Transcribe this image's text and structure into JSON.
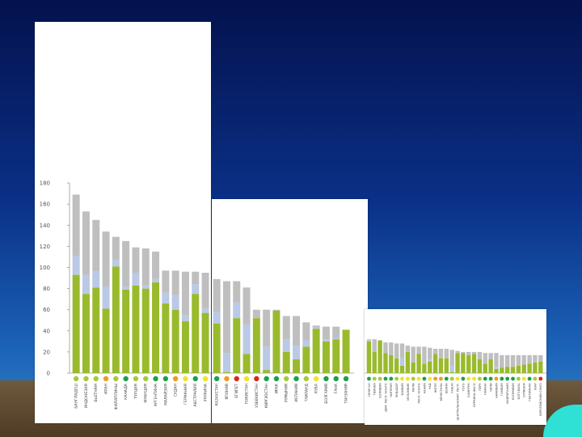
{
  "chart_data": {
    "type": "bar",
    "stacked": true,
    "title": "",
    "xlabel": "",
    "ylabel": "",
    "ylim": [
      0,
      180
    ],
    "yticks": [
      0,
      20,
      40,
      60,
      80,
      100,
      120,
      140,
      160,
      180
    ],
    "colors": {
      "green": "#9aba2d",
      "light_blue": "#b9c9e6",
      "gray": "#bfbfbf",
      "axis": "#9a9a9a",
      "dot_green": "#1f9e4b",
      "dot_lime": "#a8c93b",
      "dot_yellow": "#f2e32a",
      "dot_orange": "#ef9a24",
      "dot_red": "#d9261c"
    },
    "series_names": [
      "green",
      "light_blue",
      "gray"
    ],
    "panels": [
      {
        "categories": [
          "БАНГЛАДЕШ",
          "ИНДОНЕЗИЯ",
          "ВЬЕТНАМ",
          "ИРАН",
          "ФИЛИППИНЫ",
          "КАНАДА",
          "ТУРЦИЯ",
          "ФРАНЦИЯ",
          "АРГЕНТИНА",
          "МАЛАЙЗИЯ",
          "СУДАН",
          "ГЕРМАНИЯ",
          "АВСТРАЛИЯ",
          "УКРАИНА"
        ],
        "green": [
          93,
          75,
          81,
          61,
          101,
          79,
          83,
          80,
          86,
          66,
          60,
          49,
          75,
          57
        ],
        "light_blue": [
          18,
          18,
          15,
          21,
          6,
          3,
          12,
          3,
          3,
          10,
          14,
          6,
          9,
          4
        ],
        "gray": [
          58,
          60,
          49,
          52,
          22,
          43,
          24,
          35,
          26,
          21,
          23,
          41,
          12,
          34
        ],
        "status": [
          "lime",
          "lime",
          "lime",
          "orange",
          "lime",
          "green",
          "lime",
          "lime",
          "green",
          "green",
          "orange",
          "yellow",
          "green",
          "yellow"
        ]
      },
      {
        "categories": [
          "КАЗАХСТАН",
          "ЯПОНИЯ",
          "ЕГИПЕТ",
          "ПАКИСТАН",
          "УЗБЕКИСТАН",
          "КИРГИЗСТАН",
          "ИРАК",
          "РУМЫНИЯ",
          "ИСПАНИЯ",
          "ТАИЛАНД",
          "КУБА",
          "БОЛГАРИЯ",
          "ГАНА",
          "ТАНЗАНИЯ"
        ],
        "green": [
          47,
          1,
          52,
          18,
          52,
          3,
          59,
          20,
          13,
          25,
          42,
          30,
          32,
          41
        ],
        "light_blue": [
          11,
          18,
          15,
          28,
          0,
          22,
          0,
          12,
          13,
          6,
          1,
          2,
          1,
          0
        ],
        "gray": [
          31,
          68,
          20,
          35,
          8,
          35,
          1,
          22,
          28,
          17,
          2,
          12,
          11,
          0
        ],
        "status": [
          "green",
          "orange",
          "red",
          "yellow",
          "red",
          "green",
          "green",
          "lime",
          "green",
          "lime",
          "yellow",
          "green",
          "green",
          "green"
        ]
      },
      {
        "categories": [
          "СЕНЕГАЛ",
          "ГВИНЕЯ",
          "БОЛИВИЯ",
          "ДЕМ. РЕСП. КОНГО",
          "НИГЕРИЯ",
          "ЭКВАДОР",
          "ЗАМБИЯ",
          "МОЗАМБИК",
          "МАЛИ",
          "РЕСП. КОНГО",
          "КЕНИЯ",
          "ЧАД",
          "НИГЕР",
          "ВЕНЕСУЭЛА",
          "БЕНИН",
          "ГАБОН",
          "ЦЕНТРАЛЬНОАФР. РЕСП.",
          "ТОГО",
          "КАМЕРУН",
          "БУРКИНА-ФАСО",
          "ПЕРУ",
          "ГАЙАНА",
          "ЧИЛИ",
          "НАМИБИЯ",
          "ГАМБИЯ",
          "МАВРИТАНИЯ",
          "КОЛУМБИЯ",
          "БОТСВАНА",
          "СУРИНАМ",
          "ГВАТЕМАЛА",
          "ЮАР",
          "ЕВРОПЕЙСКИЙ СОЮЗ"
        ],
        "green": [
          30,
          20,
          31,
          19,
          17,
          14,
          7,
          20,
          10,
          18,
          9,
          11,
          18,
          14,
          14,
          1,
          19,
          19,
          17,
          18,
          13,
          9,
          13,
          4,
          5,
          6,
          6,
          7,
          8,
          9,
          10,
          11
        ],
        "light_blue": [
          1,
          0,
          0,
          0,
          0,
          0,
          7,
          0,
          0,
          0,
          0,
          2,
          0,
          0,
          0,
          6,
          0,
          0,
          0,
          0,
          0,
          0,
          0,
          2,
          0,
          0,
          0,
          0,
          0,
          0,
          0,
          0
        ],
        "gray": [
          1,
          12,
          0,
          10,
          12,
          14,
          14,
          6,
          15,
          7,
          16,
          11,
          5,
          9,
          9,
          15,
          2,
          1,
          3,
          2,
          7,
          10,
          6,
          13,
          12,
          11,
          11,
          10,
          9,
          8,
          7,
          6
        ],
        "status": [
          "green",
          "lime",
          "lime",
          "green",
          "green",
          "lime",
          "yellow",
          "yellow",
          "lime",
          "yellow",
          "green",
          "yellow",
          "orange",
          "orange",
          "green",
          "lime",
          "yellow",
          "green",
          "yellow",
          "yellow",
          "lime",
          "green",
          "green",
          "orange",
          "green",
          "green",
          "green",
          "lime",
          "yellow",
          "green",
          "lime",
          "red"
        ]
      }
    ]
  }
}
